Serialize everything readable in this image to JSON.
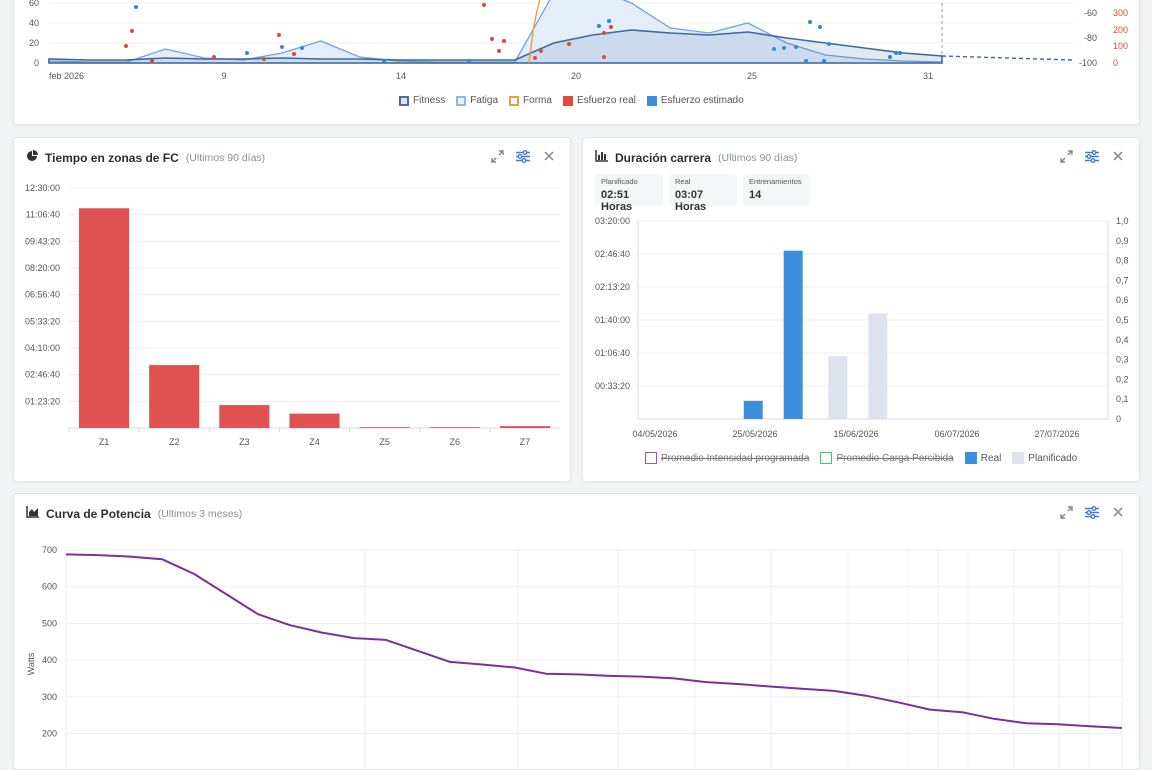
{
  "colors": {
    "red": "#e05252",
    "blue": "#3b8fdc",
    "light": "#dde3ec",
    "purple": "#7b2f9e",
    "navy": "#3d6a99",
    "orange": "#e8a13a"
  },
  "icons": {
    "pie": "pie-chart-icon",
    "bar": "bar-chart-icon",
    "area": "area-chart-icon",
    "expand": "expand-icon",
    "settings": "sliders-icon",
    "close": "close-icon"
  },
  "fitness": {
    "left_ticks": [
      "60",
      "40",
      "20",
      "0"
    ],
    "right_ticks_dark": [
      "-60",
      "-80",
      "-100"
    ],
    "right_ticks_red": [
      "300",
      "200",
      "100",
      "0"
    ],
    "x_ticks": [
      "feb 2026",
      "9",
      "14",
      "20",
      "25",
      "31"
    ],
    "legend": [
      "Fitness",
      "Fatiga",
      "Forma",
      "Esfuerzo real",
      "Esfuerzo estimado"
    ]
  },
  "zones": {
    "title": "Tiempo en zonas de FC",
    "subtitle": "(Ultimos 90 días)"
  },
  "duration": {
    "title": "Duración carrera",
    "subtitle": "(Ultimos 90 días)",
    "stats": [
      {
        "label": "Planificado",
        "value": "02:51 Horas"
      },
      {
        "label": "Real",
        "value": "03:07 Horas"
      },
      {
        "label": "Entrenamientos",
        "value": "14"
      }
    ],
    "legend": [
      "Promedio Intensidad programada",
      "Promedio Carga Percibida",
      "Real",
      "Planificado"
    ]
  },
  "power": {
    "title": "Curva de Potencia",
    "subtitle": "(Ultimos 3 meses)"
  },
  "chart_data": [
    {
      "type": "line",
      "x_ticks": [
        "feb 2026",
        "9",
        "14",
        "20",
        "25",
        "31"
      ],
      "y_ticks_left": [
        0,
        20,
        40,
        60
      ],
      "y_ticks_right": [
        -60,
        -80,
        -100
      ],
      "y_ticks_right_outer": [
        0,
        100,
        200,
        300
      ],
      "series": [
        {
          "name": "Fitness",
          "values": [
            4,
            3,
            3,
            5,
            4,
            4,
            5,
            4,
            4,
            3,
            3,
            3,
            3,
            20,
            28,
            33,
            30,
            28,
            31,
            25,
            20,
            15,
            10,
            7
          ]
        },
        {
          "name": "Fatiga",
          "values": [
            2,
            1,
            1,
            14,
            5,
            3,
            10,
            22,
            6,
            2,
            1,
            1,
            1,
            70,
            75,
            60,
            35,
            30,
            40,
            20,
            8,
            4,
            2,
            1
          ]
        }
      ],
      "legend": [
        "Fitness",
        "Fatiga",
        "Forma",
        "Esfuerzo real",
        "Esfuerzo estimado"
      ]
    },
    {
      "type": "bar",
      "title": "Tiempo en zonas de FC",
      "categories": [
        "Z1",
        "Z2",
        "Z3",
        "Z4",
        "Z5",
        "Z6",
        "Z7"
      ],
      "values": [
        41200,
        11800,
        4300,
        2700,
        150,
        150,
        350
      ],
      "y_ticks": [
        "12:30:00",
        "11:06:40",
        "09:43:20",
        "08:20:00",
        "06:56:40",
        "05:33:20",
        "04:10:00",
        "02:46:40",
        "01:23:20"
      ],
      "ylim": [
        0,
        45000
      ]
    },
    {
      "type": "bar",
      "title": "Duración carrera",
      "categories": [
        "04/05/2026",
        "25/05/2026",
        "15/06/2026",
        "06/07/2026",
        "27/07/2026"
      ],
      "series": [
        {
          "name": "Real",
          "points": [
            {
              "x": 0.45,
              "v": 1100
            },
            {
              "x": 0.62,
              "v": 10200
            }
          ]
        },
        {
          "name": "Planificado",
          "points": [
            {
              "x": 0.81,
              "v": 3800
            },
            {
              "x": 0.98,
              "v": 6400
            }
          ]
        }
      ],
      "y_ticks": [
        "03:20:00",
        "02:46:40",
        "02:13:20",
        "01:40:00",
        "01:06:40",
        "00:33:20"
      ],
      "y_ticks_right": [
        "1,0",
        "0,9",
        "0,8",
        "0,7",
        "0,6",
        "0,5",
        "0,4",
        "0,3",
        "0,2",
        "0,1",
        "0"
      ],
      "ylim": [
        0,
        12000
      ]
    },
    {
      "type": "line",
      "title": "Curva de Potencia",
      "ylabel": "Watts",
      "y_ticks": [
        200,
        300,
        400,
        500,
        600,
        700
      ],
      "series": [
        {
          "name": "",
          "values": [
            688,
            686,
            682,
            675,
            635,
            580,
            525,
            495,
            475,
            460,
            455,
            425,
            395,
            388,
            380,
            363,
            361,
            357,
            355,
            350,
            340,
            335,
            328,
            322,
            316,
            303,
            285,
            265,
            258,
            240,
            228,
            225,
            220,
            215
          ]
        }
      ]
    }
  ]
}
